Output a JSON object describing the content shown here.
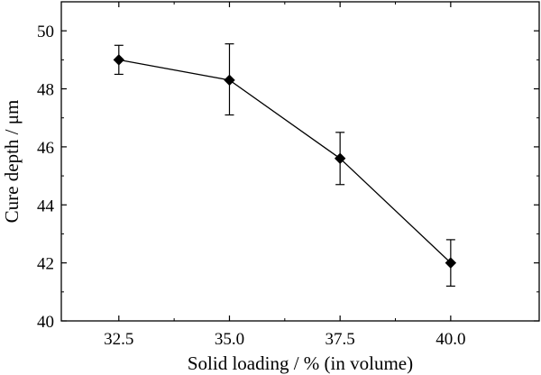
{
  "chart_data": {
    "type": "line",
    "xlabel": "Solid loading / % (in volume)",
    "ylabel": "Cure depth / μm",
    "x": [
      32.5,
      35.0,
      37.5,
      40.0
    ],
    "series": [
      {
        "values": [
          49.0,
          48.3,
          45.6,
          42.0
        ],
        "err_low": [
          48.5,
          47.1,
          44.7,
          41.2
        ],
        "err_high": [
          49.5,
          49.55,
          46.5,
          42.8
        ]
      }
    ],
    "xlim": [
      31.2,
      42.0
    ],
    "ylim": [
      40,
      51
    ],
    "xticks": [
      32.5,
      35.0,
      37.5,
      40.0
    ],
    "xtick_labels": [
      "32.5",
      "35.0",
      "37.5",
      "40.0"
    ],
    "yticks": [
      40,
      42,
      44,
      46,
      48,
      50
    ],
    "ytick_labels": [
      "40",
      "42",
      "44",
      "46",
      "48",
      "50"
    ],
    "marker": "diamond",
    "grid": false,
    "colors": {
      "line": "#000000",
      "marker": "#000000"
    }
  }
}
